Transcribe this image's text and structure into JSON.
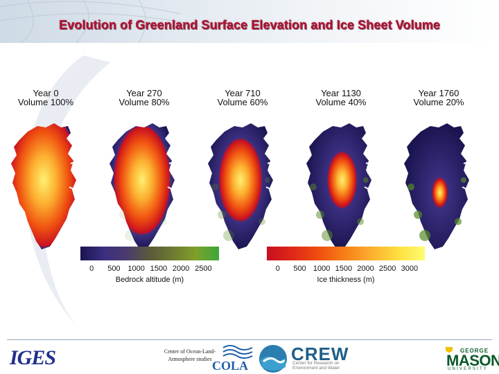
{
  "slide": {
    "title": "Evolution of Greenland Surface Elevation and Ice Sheet Volume"
  },
  "panels": [
    {
      "year": "Year 0",
      "volume": "Volume 100%",
      "ice_fraction": 1.0
    },
    {
      "year": "Year 270",
      "volume": "Volume 80%",
      "ice_fraction": 0.8
    },
    {
      "year": "Year 710",
      "volume": "Volume 60%",
      "ice_fraction": 0.6
    },
    {
      "year": "Year 1130",
      "volume": "Volume 40%",
      "ice_fraction": 0.4
    },
    {
      "year": "Year 1760",
      "volume": "Volume 20%",
      "ice_fraction": 0.2
    }
  ],
  "bedrock_colorbar": {
    "label": "Bedrock altitude (m)",
    "ticks": [
      "0",
      "500",
      "1000",
      "1500",
      "2000",
      "2500"
    ],
    "colors": [
      "#1a1550",
      "#3a2f80",
      "#4b3b6e",
      "#5a5a3a",
      "#6e7a30",
      "#7fa02a",
      "#3aa83a"
    ]
  },
  "ice_colorbar": {
    "label": "Ice thickness (m)",
    "ticks": [
      "0",
      "500",
      "1000",
      "1500",
      "2000",
      "2500",
      "3000"
    ],
    "colors": [
      "#c81020",
      "#e02818",
      "#f05010",
      "#f88018",
      "#fcb030",
      "#fde040",
      "#fffc70"
    ]
  },
  "footer": {
    "iges_logo": "IGES",
    "cola_caption": "Center of Ocean-Land-Atmosphere studies",
    "cola_logo": "COLA",
    "crew_logo": "CREW",
    "crew_sub": "Center for Research on Environment and Water",
    "gmu_top": "GEORGE",
    "gmu_main": "MASON",
    "gmu_bottom": "UNIVERSITY"
  }
}
